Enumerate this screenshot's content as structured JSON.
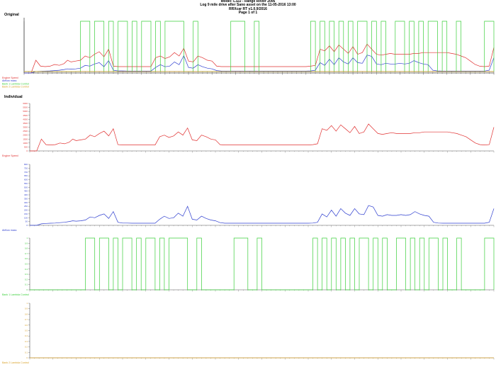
{
  "header": {
    "line1": "Model: L322 - Range Rover 2006",
    "line2": "Log 9 mile drive after Sano asset on the 11-05-2016 13:00",
    "line3": "RRXcar RT v1.0.9/2016",
    "line4": "Page 1 of 1"
  },
  "sections": {
    "original": "Original",
    "individual": "Individual"
  },
  "colors": {
    "engine_speed": "#e03030",
    "airflow": "#2f3fcf",
    "bank1": "#3bcf3b",
    "bank2": "#d9a22a",
    "axis": "#555555",
    "grid": "#bbbbbb"
  },
  "chart_data": [
    {
      "type": "line",
      "series": [
        {
          "name": "Engine Speed"
        },
        {
          "name": "Airflow mass"
        },
        {
          "name": "Bank 1 Lambda Control"
        },
        {
          "name": "Bank 2 Lambda Control"
        }
      ],
      "x": [
        0,
        6,
        10,
        14,
        18,
        22,
        26,
        30,
        34,
        37,
        40,
        44,
        48,
        52,
        56,
        60,
        64,
        68,
        72,
        76,
        80,
        84,
        88,
        92,
        96,
        100,
        104,
        108,
        112,
        116,
        120,
        124,
        128,
        132,
        136,
        140,
        144,
        148,
        152,
        156,
        160,
        164,
        168,
        172,
        176,
        180,
        184,
        188,
        192,
        196,
        200,
        204,
        208,
        212,
        216,
        220,
        224,
        228,
        232,
        236,
        240,
        244,
        248,
        252,
        256,
        260,
        264,
        268,
        272,
        276,
        280,
        284,
        288,
        292,
        296,
        300,
        304,
        308,
        312,
        316,
        320,
        324,
        328,
        332,
        336,
        340,
        344,
        348,
        352,
        356,
        360,
        364,
        368,
        372,
        376,
        380,
        384,
        388,
        392,
        396,
        400
      ],
      "engine_speed": [
        0,
        0,
        1500,
        800,
        750,
        800,
        1000,
        900,
        1100,
        1500,
        1300,
        1400,
        1500,
        2000,
        1800,
        2200,
        2500,
        1900,
        2800,
        800,
        750,
        750,
        750,
        750,
        750,
        750,
        750,
        750,
        1800,
        2000,
        1700,
        1900,
        2400,
        2000,
        2900,
        1400,
        1300,
        2000,
        1800,
        1500,
        1400,
        800,
        750,
        750,
        750,
        750,
        750,
        750,
        750,
        750,
        750,
        750,
        750,
        750,
        750,
        750,
        750,
        750,
        750,
        750,
        750,
        800,
        900,
        2800,
        2600,
        3200,
        2500,
        3300,
        2800,
        2300,
        3100,
        2200,
        2400,
        3400,
        2800,
        2200,
        2100,
        2200,
        2300,
        2200,
        2200,
        2200,
        2200,
        2300,
        2300,
        2400,
        2400,
        2400,
        2400,
        2400,
        2400,
        2300,
        2200,
        2000,
        1800,
        1400,
        1000,
        800,
        750,
        800,
        3000
      ],
      "airflow_mass": [
        0,
        0,
        20,
        25,
        28,
        30,
        35,
        40,
        50,
        60,
        55,
        60,
        70,
        110,
        100,
        130,
        150,
        90,
        180,
        40,
        30,
        30,
        28,
        28,
        28,
        28,
        28,
        28,
        80,
        120,
        90,
        100,
        160,
        120,
        250,
        80,
        70,
        120,
        90,
        70,
        60,
        35,
        28,
        28,
        28,
        28,
        28,
        28,
        28,
        28,
        28,
        28,
        28,
        28,
        28,
        28,
        28,
        28,
        28,
        28,
        28,
        30,
        40,
        150,
        110,
        200,
        120,
        220,
        160,
        130,
        220,
        150,
        140,
        260,
        240,
        130,
        120,
        140,
        130,
        130,
        140,
        130,
        140,
        180,
        150,
        130,
        120,
        40,
        30,
        28,
        28,
        28,
        28,
        28,
        28,
        28,
        28,
        28,
        28,
        40,
        220
      ],
      "bank1_lambda_control": [
        0,
        0,
        0,
        0,
        0,
        0,
        0,
        0,
        0,
        0,
        0,
        0,
        1,
        1,
        0,
        1,
        1,
        0,
        1,
        0,
        1,
        1,
        0,
        1,
        0,
        1,
        1,
        0,
        1,
        0,
        1,
        1,
        1,
        1,
        0,
        0,
        1,
        0,
        0,
        0,
        0,
        0,
        0,
        0,
        1,
        1,
        1,
        0,
        0,
        1,
        0,
        0,
        0,
        0,
        0,
        0,
        0,
        0,
        0,
        0,
        0,
        1,
        0,
        1,
        0,
        1,
        0,
        1,
        0,
        1,
        0,
        1,
        1,
        0,
        1,
        0,
        1,
        0,
        0,
        1,
        1,
        0,
        1,
        0,
        1,
        0,
        1,
        1,
        0,
        1,
        0,
        0,
        1,
        0,
        0,
        0,
        0,
        0,
        1,
        1,
        0
      ],
      "bank2_lambda_control": [
        0,
        0,
        0,
        0,
        0,
        0,
        0,
        0,
        0,
        0,
        0,
        0,
        0,
        0,
        0,
        0,
        0,
        0,
        0,
        0,
        0,
        0,
        0,
        0,
        0,
        0,
        0,
        0,
        0,
        0,
        0,
        0,
        0,
        0,
        0,
        0,
        0,
        0,
        0,
        0,
        0,
        0,
        0,
        0,
        0,
        0,
        0,
        0,
        0,
        0,
        0,
        0,
        0,
        0,
        0,
        0,
        0,
        0,
        0,
        0,
        0,
        0,
        0,
        0,
        0,
        0,
        0,
        0,
        0,
        0,
        0,
        0,
        0,
        0,
        0,
        0,
        0,
        0,
        0,
        0,
        0,
        0,
        0,
        0,
        0,
        0,
        0,
        0,
        0,
        0,
        0,
        0,
        0,
        0,
        0,
        0,
        0,
        0,
        0,
        0,
        0
      ]
    },
    {
      "type": "line",
      "series": [
        {
          "name": "Engine Speed"
        }
      ],
      "ylim": [
        0,
        6000
      ],
      "y_ticks": [
        "6000",
        "5500",
        "5000",
        "4500",
        "4000",
        "3500",
        "3000",
        "2500",
        "2000",
        "1500",
        "1000",
        "500",
        "0"
      ]
    },
    {
      "type": "line",
      "series": [
        {
          "name": "Airflow mass"
        }
      ],
      "ylim": [
        0,
        800
      ],
      "y_ticks": [
        "800",
        "750",
        "700",
        "650",
        "600",
        "550",
        "500",
        "450",
        "400",
        "350",
        "300",
        "250",
        "200",
        "150",
        "100",
        "50",
        "0"
      ]
    },
    {
      "type": "line",
      "series": [
        {
          "name": "Bank 1 Lambda Control"
        }
      ],
      "ylim": [
        0,
        1
      ],
      "y_ticks": [
        "1",
        "0.9",
        "0.8",
        "0.7",
        "0.6",
        "0.5",
        "0.4",
        "0.3",
        "0.2",
        "0.1",
        "0"
      ]
    },
    {
      "type": "line",
      "series": [
        {
          "name": "Bank 2 Lambda Control"
        }
      ],
      "ylim": [
        0,
        1
      ],
      "y_ticks": [
        "1",
        "0.9",
        "0.8",
        "0.7",
        "0.6",
        "0.5",
        "0.4",
        "0.3",
        "0.2",
        "0.1",
        "0"
      ]
    }
  ]
}
